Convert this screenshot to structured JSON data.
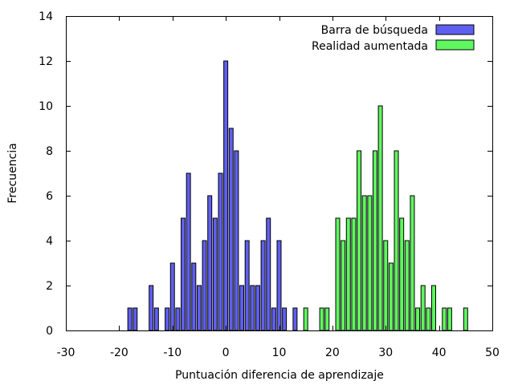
{
  "chart_data": {
    "type": "bar",
    "title": "",
    "xlabel": "Puntuación diferencia de aprendizaje",
    "ylabel": "Frecuencia",
    "xlim": [
      -30,
      50
    ],
    "ylim": [
      0,
      14
    ],
    "xticks": [
      -30,
      -20,
      -10,
      0,
      10,
      20,
      30,
      40,
      50
    ],
    "yticks": [
      0,
      2,
      4,
      6,
      8,
      10,
      12,
      14
    ],
    "grid": false,
    "legend_position": "top-right",
    "series": [
      {
        "name": "Barra de búsqueda",
        "color": "#5f5fef",
        "points": [
          {
            "x": -18,
            "y": 1
          },
          {
            "x": -17,
            "y": 1
          },
          {
            "x": -14,
            "y": 2
          },
          {
            "x": -13,
            "y": 1
          },
          {
            "x": -11,
            "y": 1
          },
          {
            "x": -10,
            "y": 3
          },
          {
            "x": -9,
            "y": 1
          },
          {
            "x": -8,
            "y": 5
          },
          {
            "x": -7,
            "y": 7
          },
          {
            "x": -6,
            "y": 3
          },
          {
            "x": -5,
            "y": 2
          },
          {
            "x": -4,
            "y": 4
          },
          {
            "x": -3,
            "y": 6
          },
          {
            "x": -2,
            "y": 5
          },
          {
            "x": -1,
            "y": 7
          },
          {
            "x": 0,
            "y": 12
          },
          {
            "x": 1,
            "y": 9
          },
          {
            "x": 2,
            "y": 8
          },
          {
            "x": 3,
            "y": 2
          },
          {
            "x": 4,
            "y": 4
          },
          {
            "x": 5,
            "y": 2
          },
          {
            "x": 6,
            "y": 2
          },
          {
            "x": 7,
            "y": 4
          },
          {
            "x": 8,
            "y": 5
          },
          {
            "x": 9,
            "y": 1
          },
          {
            "x": 10,
            "y": 4
          },
          {
            "x": 11,
            "y": 1
          },
          {
            "x": 13,
            "y": 1
          }
        ]
      },
      {
        "name": "Realidad aumentada",
        "color": "#5ff75f",
        "points": [
          {
            "x": 15,
            "y": 1
          },
          {
            "x": 18,
            "y": 1
          },
          {
            "x": 19,
            "y": 1
          },
          {
            "x": 21,
            "y": 5
          },
          {
            "x": 22,
            "y": 4
          },
          {
            "x": 23,
            "y": 5
          },
          {
            "x": 24,
            "y": 5
          },
          {
            "x": 25,
            "y": 8
          },
          {
            "x": 26,
            "y": 6
          },
          {
            "x": 27,
            "y": 6
          },
          {
            "x": 28,
            "y": 8
          },
          {
            "x": 29,
            "y": 10
          },
          {
            "x": 30,
            "y": 4
          },
          {
            "x": 31,
            "y": 3
          },
          {
            "x": 32,
            "y": 8
          },
          {
            "x": 33,
            "y": 5
          },
          {
            "x": 34,
            "y": 4
          },
          {
            "x": 35,
            "y": 6
          },
          {
            "x": 36,
            "y": 1
          },
          {
            "x": 37,
            "y": 2
          },
          {
            "x": 38,
            "y": 1
          },
          {
            "x": 39,
            "y": 2
          },
          {
            "x": 41,
            "y": 1
          },
          {
            "x": 42,
            "y": 1
          },
          {
            "x": 45,
            "y": 1
          }
        ]
      }
    ]
  }
}
